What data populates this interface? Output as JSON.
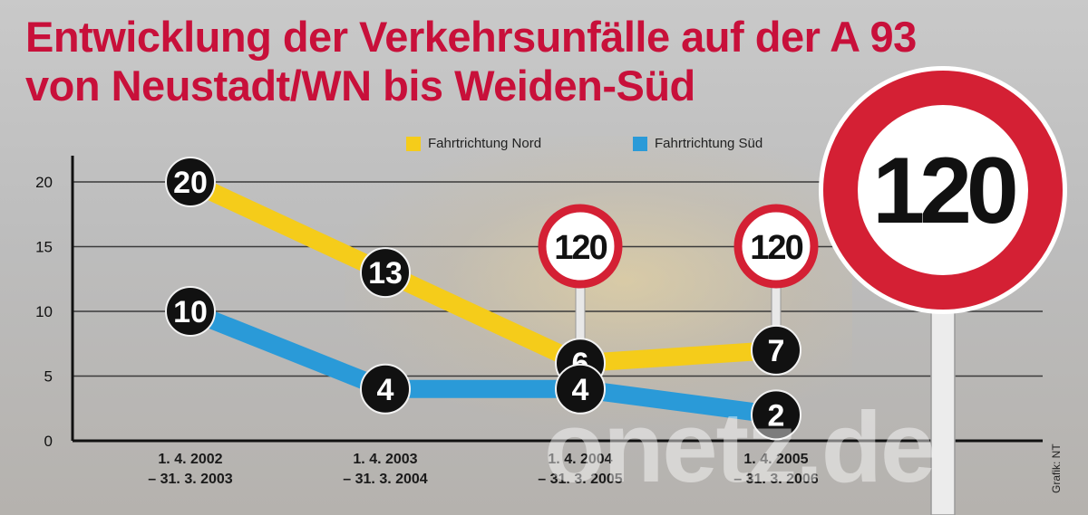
{
  "title": {
    "line1": "Entwicklung der Verkehrsunfälle auf der A 93",
    "line2": "von Neustadt/WN bis Weiden-Süd"
  },
  "legend": {
    "nord": "Fahrtrichtung Nord",
    "sued": "Fahrtrichtung Süd"
  },
  "speed_sign_label": "120",
  "credit": "Grafik: NT",
  "watermark": "onetz.de",
  "colors": {
    "title": "#c8103a",
    "nord": "#f5cc1a",
    "sued": "#2a9ad8",
    "marker": "#111111",
    "sign_ring": "#d42034"
  },
  "chart_data": {
    "type": "line",
    "categories": [
      "1. 4. 2002\n– 31. 3. 2003",
      "1. 4. 2003\n– 31. 3. 2004",
      "1. 4. 2004\n– 31. 3. 2005",
      "1. 4. 2005\n– 31. 3. 2006"
    ],
    "series": [
      {
        "name": "Fahrtrichtung Nord",
        "values": [
          20,
          13,
          6,
          7
        ]
      },
      {
        "name": "Fahrtrichtung Süd",
        "values": [
          10,
          4,
          4,
          2
        ]
      }
    ],
    "ylim": [
      0,
      20
    ],
    "yticks": [
      0,
      5,
      10,
      15,
      20
    ],
    "grid": true,
    "legend_position": "top",
    "speed_limit_signs_at": [
      2,
      3
    ]
  }
}
